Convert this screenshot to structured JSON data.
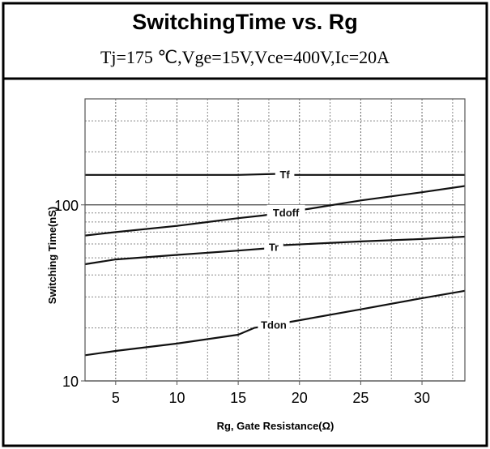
{
  "header": {
    "title": "SwitchingTime vs. Rg",
    "conditions": "Tj=175 ℃,Vge=15V,Vce=400V,Ic=20A"
  },
  "chart_data": {
    "type": "line",
    "title": "SwitchingTime vs. Rg",
    "subtitle": "Tj=175 ℃,Vge=15V,Vce=400V,Ic=20A",
    "xlabel": "Rg, Gate Resistance(Ω)",
    "ylabel": "Switching Time(nS)",
    "xlim": [
      2.5,
      33.5
    ],
    "ylim": [
      10,
      400
    ],
    "yscale": "log",
    "grid": true,
    "x_ticks": [
      5,
      10,
      15,
      20,
      25,
      30
    ],
    "y_tick_labels": [
      {
        "value": 10,
        "label": "10"
      },
      {
        "value": 100,
        "label": "100"
      }
    ],
    "series": [
      {
        "name": "Tf",
        "label_at_x": 18.8,
        "color": "#111111",
        "x": [
          2.5,
          5,
          10,
          15,
          18.3,
          19.3,
          25,
          30,
          33.5
        ],
        "y": [
          148,
          148,
          148,
          148,
          150,
          148,
          148,
          148,
          148
        ]
      },
      {
        "name": "Tdoff",
        "label_at_x": 18.9,
        "color": "#111111",
        "x": [
          2.5,
          5,
          10,
          15,
          17,
          20.8,
          25,
          30,
          33.5
        ],
        "y": [
          67,
          70,
          76,
          84,
          87,
          95,
          106,
          118,
          128
        ]
      },
      {
        "name": "Tr",
        "label_at_x": 17.9,
        "color": "#111111",
        "x": [
          2.5,
          5,
          10,
          15,
          17.2,
          18.5,
          25,
          30,
          33.5
        ],
        "y": [
          46,
          49,
          52,
          55,
          56.5,
          59,
          62,
          64,
          66
        ]
      },
      {
        "name": "Tdon",
        "label_at_x": 17.9,
        "color": "#111111",
        "x": [
          2.5,
          5,
          10,
          15,
          16.3,
          19.5,
          25,
          30,
          33.5
        ],
        "y": [
          14,
          14.8,
          16.3,
          18.3,
          20,
          21.8,
          25.5,
          29.5,
          32.5
        ]
      }
    ]
  }
}
